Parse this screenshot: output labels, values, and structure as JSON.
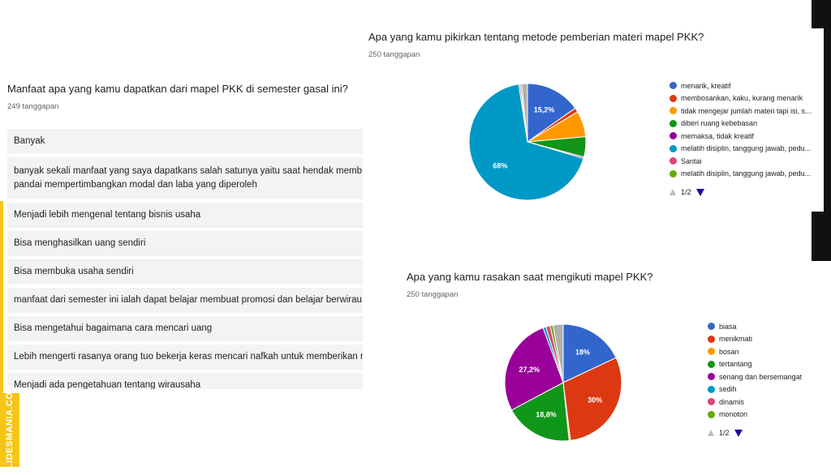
{
  "left_question": {
    "title": "Manfaat apa yang kamu dapatkan dari mapel PKK di semester gasal ini?",
    "count": "249 tanggapan",
    "responses": [
      [
        "Banyak"
      ],
      [
        "banyak sekali manfaat yang saya dapatkans salah satunya yaitu saat hendak memb",
        "pandai mempertimbangkan modal dan laba yang diperoleh"
      ],
      [
        "Menjadi lebih mengenal tentang bisnis usaha"
      ],
      [
        "Bisa menghasilkan uang sendiri"
      ],
      [
        "Bisa membuka usaha sendiri"
      ],
      [
        "manfaat dari semester ini ialah dapat belajar membuat promosi dan belajar berwirau"
      ],
      [
        "Bisa mengetahui bagaimana cara mencari uang"
      ],
      [
        "Lebih mengerti rasanya orang tuo bekerja keras mencari nafkah untuk memberikan n"
      ],
      [
        "Menjadi ada pengetahuan tentang wirausaha"
      ]
    ]
  },
  "chart_top": {
    "title": "Apa yang kamu pikirkan tentang metode pemberian materi mapel PKK?",
    "count": "250 tanggapan",
    "pager": "1/2"
  },
  "chart_bottom": {
    "title": "Apa yang kamu rasakan saat mengikuti mapel PKK?",
    "count": "250 tanggapan",
    "pager": "1/2"
  },
  "chart_data": [
    {
      "type": "pie",
      "title": "Apa yang kamu pikirkan tentang metode pemberian materi mapel PKK?",
      "legend_position": "right",
      "slices": [
        {
          "label": "menarik, kreatif",
          "value": 15.2,
          "color": "#3366cc",
          "shown_label": "15,2%"
        },
        {
          "label": "membosankan, kaku, kurang menarik",
          "value": 1.2,
          "color": "#dc3912",
          "shown_label": ""
        },
        {
          "label": "tidak mengejar jumlah materi tapi isi, s...",
          "value": 7.2,
          "color": "#ff9900",
          "shown_label": ""
        },
        {
          "label": "diberi ruang kebebasan",
          "value": 5.6,
          "color": "#109618",
          "shown_label": ""
        },
        {
          "label": "memaksa, tidak kreatif",
          "value": 0.4,
          "color": "#990099",
          "shown_label": ""
        },
        {
          "label": "melatih disiplin, tanggung jawab, pedu...",
          "value": 68,
          "color": "#0099c6",
          "shown_label": "68%"
        },
        {
          "label": "Santai",
          "value": 0.4,
          "color": "#dd4477",
          "shown_label": ""
        },
        {
          "label": "melatih disiplin, tanggung jawab, pedu...",
          "value": 0.4,
          "color": "#66aa00",
          "shown_label": ""
        },
        {
          "label": "",
          "value": 1.6,
          "color": "#b0b0b0",
          "shown_label": ""
        }
      ]
    },
    {
      "type": "pie",
      "title": "Apa yang kamu rasakan saat mengikuti mapel PKK?",
      "legend_position": "right",
      "slices": [
        {
          "label": "biasa",
          "value": 18,
          "color": "#3366cc",
          "shown_label": "18%"
        },
        {
          "label": "menikmati",
          "value": 30,
          "color": "#dc3912",
          "shown_label": "30%"
        },
        {
          "label": "bosan",
          "value": 0.4,
          "color": "#ff9900",
          "shown_label": ""
        },
        {
          "label": "tertantang",
          "value": 18.8,
          "color": "#109618",
          "shown_label": "18,8%"
        },
        {
          "label": "senang dan bersemangat",
          "value": 27.2,
          "color": "#990099",
          "shown_label": "27,2%"
        },
        {
          "label": "sedih",
          "value": 0.8,
          "color": "#0099c6",
          "shown_label": ""
        },
        {
          "label": "dinamis",
          "value": 1.2,
          "color": "#dd4477",
          "shown_label": ""
        },
        {
          "label": "monoton",
          "value": 0.8,
          "color": "#66aa00",
          "shown_label": ""
        },
        {
          "label": "",
          "value": 2.8,
          "color": "#b0b0b0",
          "shown_label": ""
        }
      ]
    }
  ],
  "watermark": "SLIDESMANIA.COM"
}
